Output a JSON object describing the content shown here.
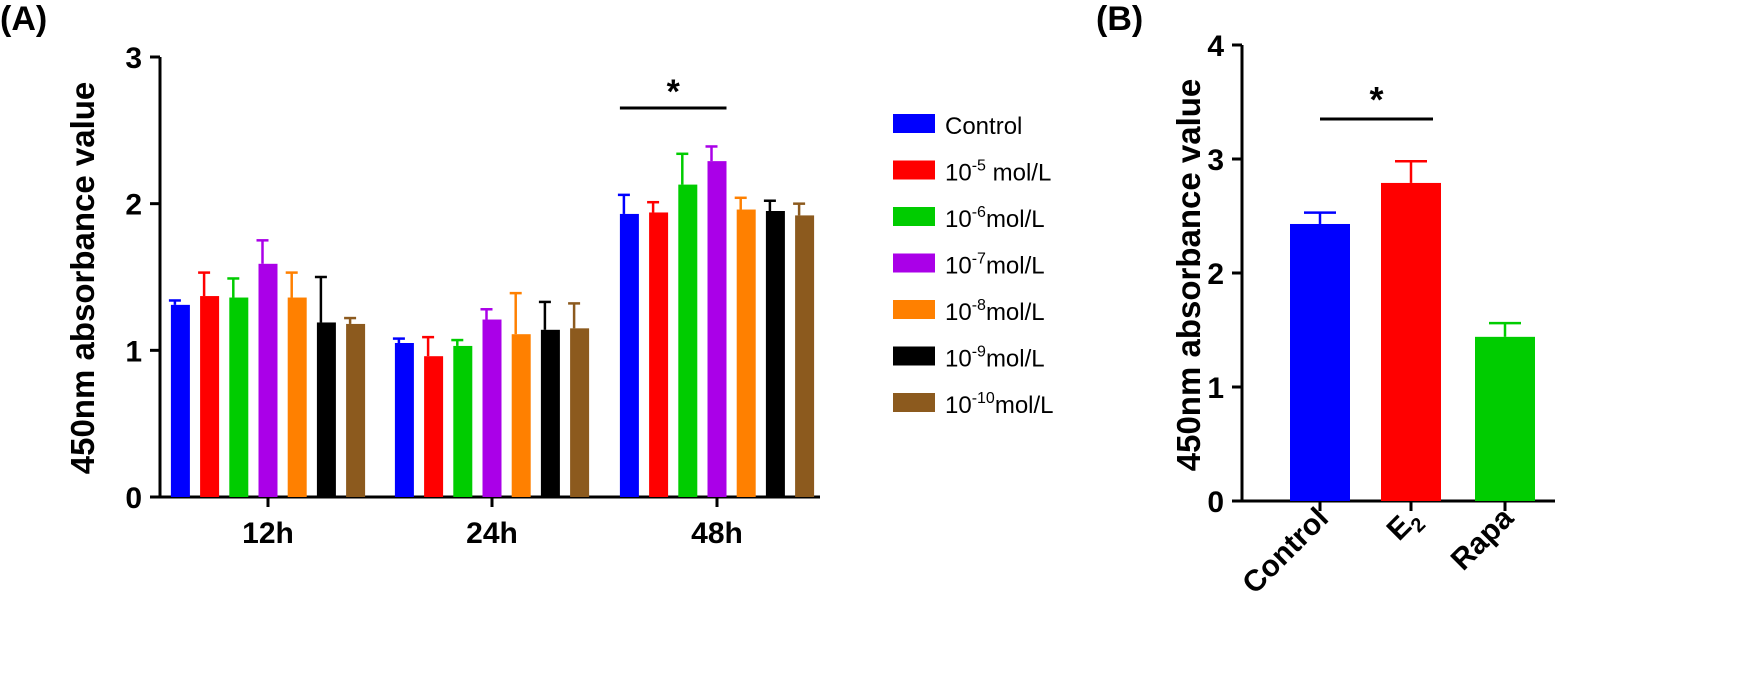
{
  "chart_data": [
    {
      "panel": "(A)",
      "type": "bar",
      "ylabel": "450nm absorbance value",
      "ylim": [
        0,
        3
      ],
      "yticks": [
        "0",
        "1",
        "2",
        "3"
      ],
      "categories": [
        "12h",
        "24h",
        "48h"
      ],
      "series": [
        {
          "name": "Control",
          "label_base": "Control",
          "label_exp": "",
          "label_unit": "",
          "color": "#0000FF",
          "values": [
            1.31,
            1.05,
            1.93
          ],
          "errors": [
            0.03,
            0.03,
            0.13
          ]
        },
        {
          "name": "10-5 mol/L",
          "label_base": "10",
          "label_exp": "-5",
          "label_unit": " mol/L",
          "color": "#FF0000",
          "values": [
            1.37,
            0.96,
            1.94
          ],
          "errors": [
            0.16,
            0.13,
            0.07
          ]
        },
        {
          "name": "10-6mol/L",
          "label_base": "10",
          "label_exp": "-6",
          "label_unit": "mol/L",
          "color": "#00CC00",
          "values": [
            1.36,
            1.03,
            2.13
          ],
          "errors": [
            0.13,
            0.04,
            0.21
          ]
        },
        {
          "name": "10-7mol/L",
          "label_base": "10",
          "label_exp": "-7",
          "label_unit": "mol/L",
          "color": "#AA00E8",
          "values": [
            1.59,
            1.21,
            2.29
          ],
          "errors": [
            0.16,
            0.07,
            0.1
          ]
        },
        {
          "name": "10-8mol/L",
          "label_base": "10",
          "label_exp": "-8",
          "label_unit": "mol/L",
          "color": "#FF8000",
          "values": [
            1.36,
            1.11,
            1.96
          ],
          "errors": [
            0.17,
            0.28,
            0.08
          ]
        },
        {
          "name": "10-9mol/L",
          "label_base": "10",
          "label_exp": "-9",
          "label_unit": "mol/L",
          "color": "#000000",
          "values": [
            1.19,
            1.14,
            1.95
          ],
          "errors": [
            0.31,
            0.19,
            0.07
          ]
        },
        {
          "name": "10-10mol/L",
          "label_base": "10",
          "label_exp": "-10",
          "label_unit": "mol/L",
          "color": "#8C5A1E",
          "values": [
            1.18,
            1.15,
            1.92
          ],
          "errors": [
            0.04,
            0.17,
            0.08
          ]
        }
      ],
      "significance": {
        "label": "*",
        "from_category": "48h",
        "from_series": 0,
        "to_series": 3
      }
    },
    {
      "panel": "(B)",
      "type": "bar",
      "ylabel": "450nm absorbance value",
      "ylim": [
        0,
        4
      ],
      "yticks": [
        "0",
        "1",
        "2",
        "3",
        "4"
      ],
      "categories": [
        {
          "base": "Control",
          "sub": ""
        },
        {
          "base": "E",
          "sub": "2"
        },
        {
          "base": "Rapa",
          "sub": ""
        }
      ],
      "values": [
        2.43,
        2.79,
        1.44
      ],
      "errors": [
        0.1,
        0.19,
        0.12
      ],
      "colors": [
        "#0000FF",
        "#FF0000",
        "#00CC00"
      ],
      "significance": {
        "label": "*",
        "from_index": 0,
        "to_index": 1
      }
    }
  ]
}
